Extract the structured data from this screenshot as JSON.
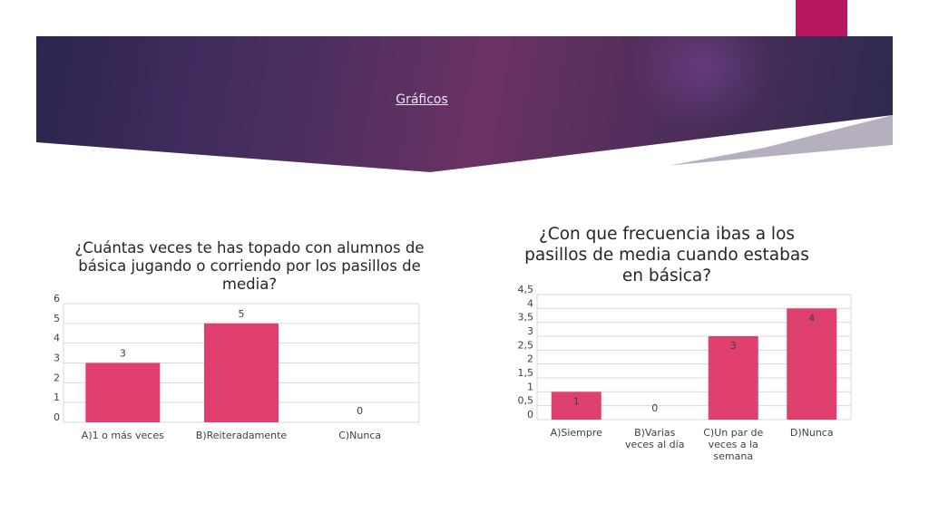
{
  "header": {
    "title": "Gráficos"
  },
  "colors": {
    "bar": "#e0406e",
    "grid": "#d9d9d9",
    "accent_tab": "#b8175f",
    "banner_dark": "#2c2552",
    "banner_mid": "#6a3262"
  },
  "chart_data": [
    {
      "type": "bar",
      "title": "¿Cuántas veces te has topado con alumnos de básica jugando o corriendo por los pasillos de media?",
      "categories": [
        "A)1 o más veces",
        "B)Reiteradamente",
        "C)Nunca"
      ],
      "values": [
        3,
        5,
        0
      ],
      "data_labels": [
        "3",
        "5",
        "0"
      ],
      "y_ticks": [
        "0",
        "1",
        "2",
        "3",
        "4",
        "5",
        "6"
      ],
      "ylim": [
        0,
        6
      ],
      "grid": true,
      "legend": "none"
    },
    {
      "type": "bar",
      "title": "¿Con que frecuencia ibas a los pasillos de media cuando estabas en básica?",
      "categories": [
        "A)Siempre",
        "B)Varias veces al día",
        "C)Un par de veces a la semana",
        "D)Nunca"
      ],
      "values": [
        1,
        0,
        3,
        4
      ],
      "data_labels": [
        "1",
        "0",
        "3",
        "4"
      ],
      "y_ticks": [
        "0",
        "0,5",
        "1",
        "1,5",
        "2",
        "2,5",
        "3",
        "3,5",
        "4",
        "4,5"
      ],
      "ylim": [
        0,
        4.5
      ],
      "grid": true,
      "legend": "none"
    }
  ]
}
